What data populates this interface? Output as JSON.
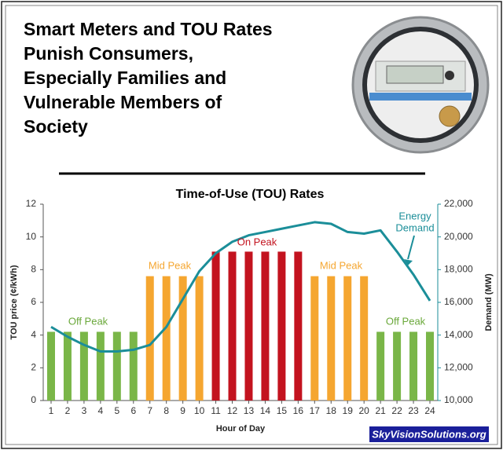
{
  "header": {
    "title_lines": [
      "Smart Meters and TOU Rates",
      "Punish Consumers,",
      "Especially Families and",
      "Vulnerable Members of",
      "Society"
    ]
  },
  "chart_data": {
    "type": "bar",
    "title": "Time-of-Use (TOU) Rates",
    "x_label": "Hour of Day",
    "y_label": "TOU price (¢/kWh)",
    "y2_label": "Demand (MW)",
    "categories": [
      "1",
      "2",
      "3",
      "4",
      "5",
      "6",
      "7",
      "8",
      "9",
      "10",
      "11",
      "12",
      "13",
      "14",
      "15",
      "16",
      "17",
      "18",
      "19",
      "20",
      "21",
      "22",
      "23",
      "24"
    ],
    "series": [
      {
        "axis": "y",
        "type": "bar",
        "values": [
          4.2,
          4.2,
          4.2,
          4.2,
          4.2,
          4.2,
          7.6,
          7.6,
          7.6,
          7.6,
          9.1,
          9.1,
          9.1,
          9.1,
          9.1,
          9.1,
          7.6,
          7.6,
          7.6,
          7.6,
          4.2,
          4.2,
          4.2,
          4.2
        ],
        "colors": [
          "#7ab648",
          "#7ab648",
          "#7ab648",
          "#7ab648",
          "#7ab648",
          "#7ab648",
          "#f5a630",
          "#f5a630",
          "#f5a630",
          "#f5a630",
          "#c3131f",
          "#c3131f",
          "#c3131f",
          "#c3131f",
          "#c3131f",
          "#c3131f",
          "#f5a630",
          "#f5a630",
          "#f5a630",
          "#f5a630",
          "#7ab648",
          "#7ab648",
          "#7ab648",
          "#7ab648"
        ]
      },
      {
        "axis": "y2",
        "type": "line",
        "color": "#1b8e99",
        "values": [
          14500,
          13900,
          13400,
          13000,
          13000,
          13100,
          13400,
          14500,
          16200,
          17900,
          19000,
          19700,
          20100,
          20300,
          20500,
          20700,
          20900,
          20800,
          20300,
          20200,
          20400,
          19100,
          17700,
          16100
        ]
      }
    ],
    "ylim": [
      0,
      12
    ],
    "yticks": [
      0,
      2,
      4,
      6,
      8,
      10,
      12
    ],
    "y2lim": [
      10000,
      22000
    ],
    "y2ticks": [
      {
        "value": 10000,
        "label": "10,000"
      },
      {
        "value": 12000,
        "label": "12,000"
      },
      {
        "value": 14000,
        "label": "14,000"
      },
      {
        "value": 16000,
        "label": "16,000"
      },
      {
        "value": 18000,
        "label": "18,000"
      },
      {
        "value": 20000,
        "label": "20,000"
      },
      {
        "value": 22000,
        "label": "22,000"
      }
    ],
    "annotations": [
      {
        "lines": [
          "Off Peak"
        ],
        "color": "#6aa83a"
      },
      {
        "lines": [
          "Mid Peak"
        ],
        "color": "#f5a630"
      },
      {
        "lines": [
          "On Peak"
        ],
        "color": "#c3131f"
      },
      {
        "lines": [
          "Mid Peak"
        ],
        "color": "#f5a630"
      },
      {
        "lines": [
          "Off Peak"
        ],
        "color": "#6aa83a"
      },
      {
        "lines": [
          "Energy",
          "Demand"
        ],
        "color": "#1b8e99"
      }
    ]
  },
  "footer": {
    "credit": "SkyVisionSolutions.org"
  }
}
